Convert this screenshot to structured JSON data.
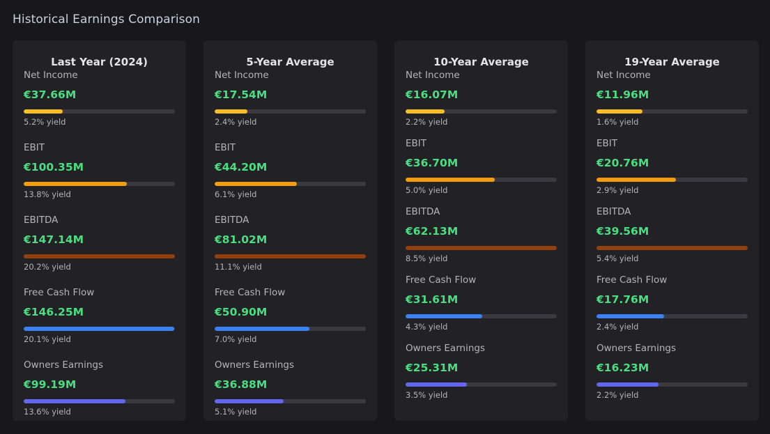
{
  "section": {
    "title": "Historical Earnings Comparison"
  },
  "colors": {
    "net_income": "#fbbf24",
    "ebit": "#f59e0b",
    "ebitda": "#92400e",
    "free_cash_flow": "#3b82f6",
    "owners_earnings": "#6366f1",
    "value": "#4ade80"
  },
  "cards": [
    {
      "title": "Last Year (2024)",
      "metrics": [
        {
          "label": "Net Income",
          "value": "€37.66M",
          "yield": "5.2% yield",
          "fill": 0.256
        },
        {
          "label": "EBIT",
          "value": "€100.35M",
          "yield": "13.8% yield",
          "fill": 0.683
        },
        {
          "label": "EBITDA",
          "value": "€147.14M",
          "yield": "20.2% yield",
          "fill": 1.0
        },
        {
          "label": "Free Cash Flow",
          "value": "€146.25M",
          "yield": "20.1% yield",
          "fill": 0.994
        },
        {
          "label": "Owners Earnings",
          "value": "€99.19M",
          "yield": "13.6% yield",
          "fill": 0.674
        }
      ]
    },
    {
      "title": "5-Year Average",
      "metrics": [
        {
          "label": "Net Income",
          "value": "€17.54M",
          "yield": "2.4% yield",
          "fill": 0.216
        },
        {
          "label": "EBIT",
          "value": "€44.20M",
          "yield": "6.1% yield",
          "fill": 0.546
        },
        {
          "label": "EBITDA",
          "value": "€81.02M",
          "yield": "11.1% yield",
          "fill": 1.0
        },
        {
          "label": "Free Cash Flow",
          "value": "€50.90M",
          "yield": "7.0% yield",
          "fill": 0.628
        },
        {
          "label": "Owners Earnings",
          "value": "€36.88M",
          "yield": "5.1% yield",
          "fill": 0.455
        }
      ]
    },
    {
      "title": "10-Year Average",
      "metrics": [
        {
          "label": "Net Income",
          "value": "€16.07M",
          "yield": "2.2% yield",
          "fill": 0.259
        },
        {
          "label": "EBIT",
          "value": "€36.70M",
          "yield": "5.0% yield",
          "fill": 0.591
        },
        {
          "label": "EBITDA",
          "value": "€62.13M",
          "yield": "8.5% yield",
          "fill": 1.0
        },
        {
          "label": "Free Cash Flow",
          "value": "€31.61M",
          "yield": "4.3% yield",
          "fill": 0.509
        },
        {
          "label": "Owners Earnings",
          "value": "€25.31M",
          "yield": "3.5% yield",
          "fill": 0.407
        }
      ]
    },
    {
      "title": "19-Year Average",
      "metrics": [
        {
          "label": "Net Income",
          "value": "€11.96M",
          "yield": "1.6% yield",
          "fill": 0.302
        },
        {
          "label": "EBIT",
          "value": "€20.76M",
          "yield": "2.9% yield",
          "fill": 0.525
        },
        {
          "label": "EBITDA",
          "value": "€39.56M",
          "yield": "5.4% yield",
          "fill": 1.0
        },
        {
          "label": "Free Cash Flow",
          "value": "€17.76M",
          "yield": "2.4% yield",
          "fill": 0.449
        },
        {
          "label": "Owners Earnings",
          "value": "€16.23M",
          "yield": "2.2% yield",
          "fill": 0.41
        }
      ]
    }
  ]
}
